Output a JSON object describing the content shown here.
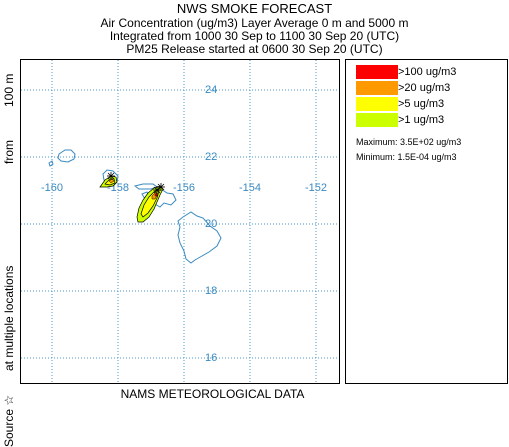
{
  "header": {
    "title": "NWS SMOKE FORECAST",
    "line1": "Air Concentration (ug/m3) Layer Average    0 m and  5000 m",
    "line2": "Integrated from 1000 30 Sep to 1100 30 Sep 20 (UTC)",
    "line3": "PM25 Release started at 0600 30 Sep 20 (UTC)"
  },
  "side_label": {
    "source": "Source ☆",
    "locations": "at multiple locations",
    "from": "from",
    "height": "100 m"
  },
  "map": {
    "lat_labels": [
      "24",
      "22",
      "20",
      "18",
      "16"
    ],
    "lon_labels": [
      "-160",
      "-158",
      "-156",
      "-154",
      "-152"
    ],
    "grid_color": "#4a9ac8",
    "coast_color": "#3a8ac0",
    "label_color": "#3a8ac0"
  },
  "legend": {
    "items": [
      {
        "label": ">100 ug/m3",
        "color": "#ff0000"
      },
      {
        "label": ">20 ug/m3",
        "color": "#ff9900"
      },
      {
        "label": ">5 ug/m3",
        "color": "#ffff00"
      },
      {
        "label": ">1 ug/m3",
        "color": "#ccff00"
      }
    ],
    "maximum": "Maximum: 3.5E+02 ug/m3",
    "minimum": "Minimum: 1.5E-04 ug/m3"
  },
  "footer": "NAMS METEOROLOGICAL DATA"
}
